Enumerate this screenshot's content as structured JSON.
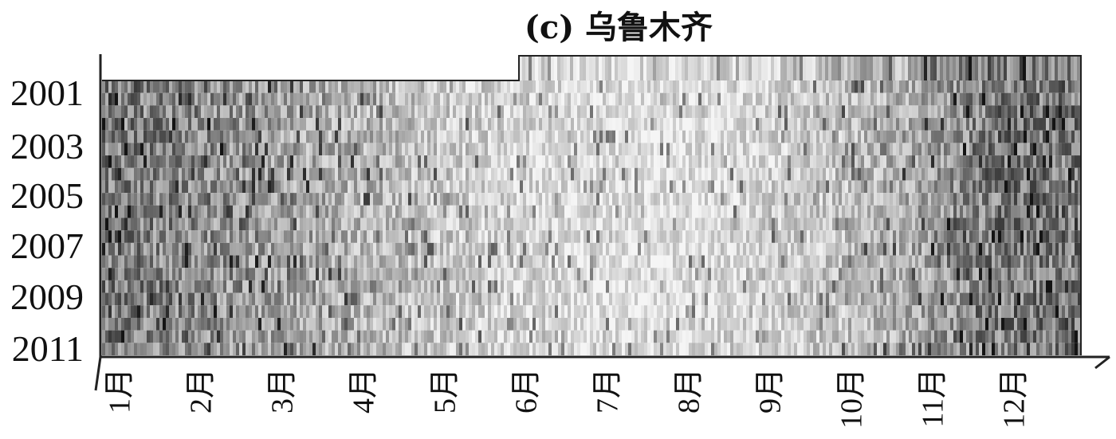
{
  "chart_data": {
    "type": "heatmap",
    "title": "(c) 乌鲁木齐",
    "colormap": "grayscale",
    "years": [
      "2001",
      "2002",
      "2003",
      "2004",
      "2005",
      "2006",
      "2007",
      "2008",
      "2009",
      "2010",
      "2011"
    ],
    "year_tick_labels": [
      "2001",
      "2003",
      "2005",
      "2007",
      "2009",
      "2011"
    ],
    "months": [
      "1月",
      "2月",
      "3月",
      "4月",
      "5月",
      "6月",
      "7月",
      "8月",
      "9月",
      "10月",
      "11月",
      "12月"
    ],
    "first_data_month_2000": "6月",
    "monthly_mean_shading": {
      "description": "0 = white, 1 = black",
      "by_month": [
        0.55,
        0.48,
        0.38,
        0.3,
        0.22,
        0.15,
        0.1,
        0.1,
        0.14,
        0.22,
        0.35,
        0.55
      ]
    }
  }
}
